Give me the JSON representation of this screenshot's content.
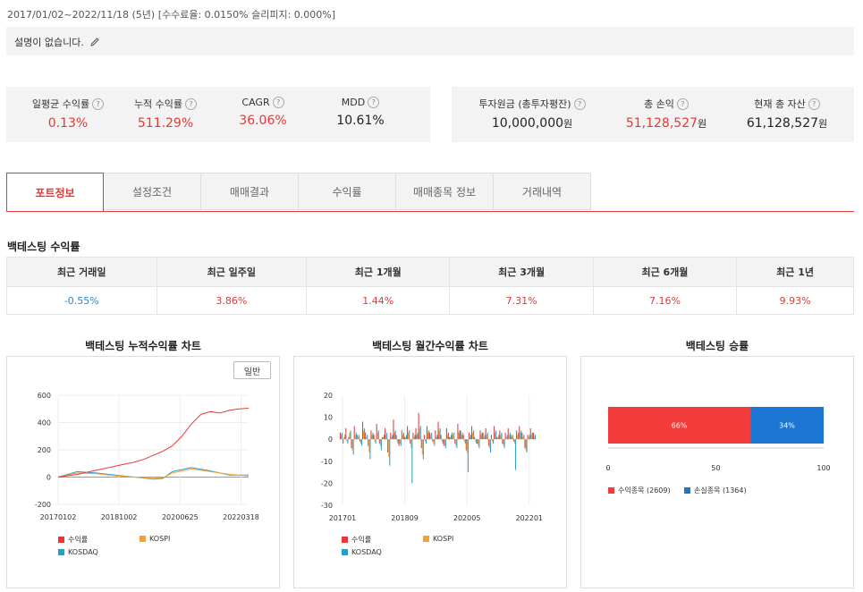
{
  "period": {
    "text": "2017/01/02~2022/11/18 (5년) [수수료율: 0.0150% 슬리피지: 0.000%]"
  },
  "description": {
    "text": "설명이 없습니다.",
    "icon": "pencil-icon"
  },
  "stats_left": [
    {
      "label": "일평균 수익률",
      "value": "0.13%",
      "color": "red"
    },
    {
      "label": "누적 수익률",
      "value": "511.29%",
      "color": "red"
    },
    {
      "label": "CAGR",
      "value": "36.06%",
      "color": "red"
    },
    {
      "label": "MDD",
      "value": "10.61%",
      "color": "black"
    }
  ],
  "stats_right": [
    {
      "label": "투자원금 (총투자평잔)",
      "value": "10,000,000",
      "unit": "원",
      "color": "black"
    },
    {
      "label": "총 손익",
      "value": "51,128,527",
      "unit": "원",
      "color": "red"
    },
    {
      "label": "현재 총 자산",
      "value": "61,128,527",
      "unit": "원",
      "color": "black"
    }
  ],
  "tabs": [
    "포트정보",
    "설정조건",
    "매매결과",
    "수익률",
    "매매종목 정보",
    "거래내역"
  ],
  "active_tab": 0,
  "returns_section": {
    "title": "백테스팅 수익률",
    "headers": [
      "최근 거래일",
      "최근 일주일",
      "최근 1개월",
      "최근 3개월",
      "최근 6개월",
      "최근 1년"
    ],
    "values": [
      "-0.55%",
      "3.86%",
      "1.44%",
      "7.31%",
      "7.16%",
      "9.93%"
    ]
  },
  "chart1": {
    "title": "백테스팅 누적수익률 차트",
    "button": "일반",
    "legend": [
      "수익률",
      "KOSPI",
      "KOSDAQ"
    ]
  },
  "chart2": {
    "title": "백테스팅 월간수익률 차트",
    "legend": [
      "수익률",
      "KOSPI",
      "KOSDAQ"
    ]
  },
  "chart3": {
    "title": "백테스팅 승률",
    "legend": [
      "수익종목 (2609)",
      "손실종목 (1364)"
    ]
  },
  "colors": {
    "red": "#e53935",
    "blue": "#1e88e5",
    "orange": "#f5a030",
    "teal": "#2a9dc8",
    "bar_red": "#f23c3c",
    "bar_blue": "#1b76d3"
  },
  "chart_data": [
    {
      "type": "line",
      "title": "백테스팅 누적수익률 차트",
      "xticks": [
        "20170102",
        "20181002",
        "20200625",
        "20220318"
      ],
      "ylim": [
        -200,
        600
      ],
      "yticks": [
        600,
        400,
        200,
        0,
        -200
      ],
      "series": [
        {
          "name": "수익률",
          "x_frac": [
            0,
            0.1,
            0.2,
            0.3,
            0.4,
            0.45,
            0.5,
            0.55,
            0.6,
            0.65,
            0.7,
            0.75,
            0.8,
            0.85,
            0.9,
            0.95,
            1.0
          ],
          "values": [
            0,
            20,
            50,
            80,
            110,
            130,
            160,
            190,
            230,
            300,
            390,
            460,
            480,
            470,
            490,
            500,
            505
          ]
        },
        {
          "name": "KOSPI",
          "x_frac": [
            0,
            0.1,
            0.2,
            0.3,
            0.4,
            0.5,
            0.55,
            0.6,
            0.7,
            0.8,
            0.9,
            1.0
          ],
          "values": [
            0,
            30,
            25,
            10,
            0,
            -10,
            -5,
            30,
            60,
            40,
            20,
            10
          ]
        },
        {
          "name": "KOSDAQ",
          "x_frac": [
            0,
            0.1,
            0.2,
            0.3,
            0.4,
            0.5,
            0.55,
            0.6,
            0.7,
            0.8,
            0.9,
            1.0
          ],
          "values": [
            0,
            40,
            30,
            15,
            0,
            -15,
            -10,
            40,
            70,
            45,
            15,
            15
          ]
        }
      ]
    },
    {
      "type": "bar",
      "title": "백테스팅 월간수익률 차트",
      "xticks": [
        "201701",
        "201809",
        "202005",
        "202201"
      ],
      "ylim": [
        -30,
        20
      ],
      "yticks": [
        20,
        10,
        0,
        -10,
        -20,
        -30
      ],
      "series": [
        {
          "name": "수익률",
          "values": [
            3,
            -2,
            5,
            1,
            -4,
            6,
            2,
            -1,
            8,
            3,
            -3,
            4,
            2,
            7,
            -2,
            1,
            5,
            -6,
            3,
            9,
            2,
            -3,
            4,
            1,
            6,
            -2,
            3,
            5,
            12,
            -4,
            2,
            6,
            3,
            -1,
            4,
            8,
            2,
            -3,
            5,
            1,
            3,
            -2,
            7,
            4,
            2,
            -5,
            3,
            6,
            1,
            -2,
            4,
            3,
            5,
            -3,
            2,
            6,
            1,
            4,
            -2,
            3,
            5,
            2,
            -1,
            4,
            6,
            3,
            -4,
            2,
            5,
            3
          ]
        },
        {
          "name": "KOSPI",
          "values": [
            2,
            1,
            -1,
            3,
            -5,
            2,
            1,
            -2,
            4,
            1,
            -6,
            2,
            -1,
            3,
            -3,
            1,
            2,
            -8,
            1,
            3,
            -1,
            -2,
            2,
            1,
            3,
            -4,
            1,
            2,
            5,
            -7,
            -1,
            3,
            2,
            -2,
            1,
            4,
            -1,
            -3,
            2,
            1,
            2,
            -3,
            3,
            2,
            -1,
            -6,
            1,
            3,
            -1,
            -3,
            2,
            1,
            2,
            -4,
            -1,
            3,
            1,
            2,
            -3,
            1,
            2,
            1,
            -2,
            2,
            3,
            1,
            -5,
            1,
            2,
            1
          ]
        },
        {
          "name": "KOSDAQ",
          "values": [
            3,
            2,
            -2,
            4,
            -7,
            3,
            2,
            -3,
            5,
            2,
            -9,
            3,
            -2,
            4,
            -5,
            2,
            3,
            -12,
            2,
            4,
            -2,
            -3,
            3,
            2,
            4,
            -20,
            2,
            3,
            6,
            -9,
            -2,
            4,
            3,
            -3,
            2,
            5,
            -2,
            -4,
            3,
            2,
            3,
            -4,
            4,
            3,
            -2,
            -15,
            2,
            4,
            -2,
            -4,
            3,
            2,
            3,
            -6,
            -2,
            4,
            2,
            3,
            -4,
            2,
            3,
            2,
            -14,
            3,
            4,
            2,
            -6,
            2,
            3,
            2
          ]
        }
      ]
    },
    {
      "type": "bar",
      "title": "백테스팅 승률",
      "orientation": "horizontal-stacked",
      "xlim": [
        0,
        100
      ],
      "xticks": [
        0,
        50,
        100
      ],
      "series": [
        {
          "name": "수익종목 (2609)",
          "values": [
            66
          ],
          "label": "66%"
        },
        {
          "name": "손실종목 (1364)",
          "values": [
            34
          ],
          "label": "34%"
        }
      ]
    }
  ]
}
